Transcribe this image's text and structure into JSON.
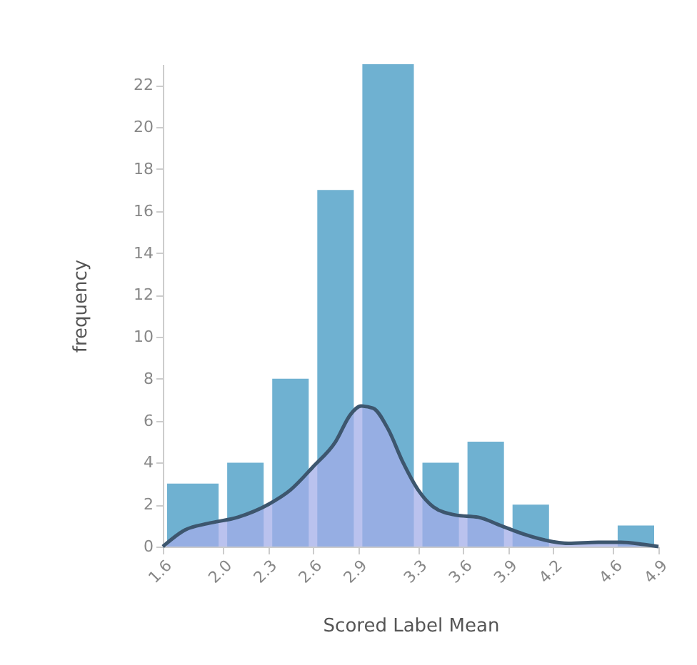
{
  "chart_data": {
    "type": "histogram",
    "xlabel": "Scored Label Mean",
    "ylabel": "frequency",
    "bins": [
      1.6,
      2.0,
      2.3,
      2.6,
      2.9,
      3.3,
      3.6,
      3.9,
      4.2,
      4.6,
      4.9
    ],
    "series": [
      {
        "color": "#6fb1d1",
        "values": [
          3,
          4,
          8,
          17,
          23,
          4,
          5,
          2,
          0,
          1
        ]
      },
      {
        "type": "area",
        "color": "#3d566e",
        "x": [
          1.6,
          1.75,
          1.9,
          2.1,
          2.3,
          2.45,
          2.6,
          2.75,
          2.85,
          2.92,
          3.0,
          3.1,
          3.2,
          3.3,
          3.4,
          3.55,
          3.7,
          3.85,
          4.0,
          4.15,
          4.3,
          4.5,
          4.65,
          4.8,
          4.9
        ],
        "values": [
          0,
          0.8,
          1.1,
          1.4,
          2.0,
          2.7,
          3.8,
          5.0,
          6.3,
          6.7,
          6.6,
          5.6,
          4.0,
          2.7,
          1.9,
          1.5,
          1.4,
          1.0,
          0.6,
          0.3,
          0.15,
          0.2,
          0.2,
          0.1,
          0
        ]
      }
    ],
    "xlim": [
      1.6,
      4.9
    ],
    "xticks": [
      1.6,
      {
        "value": 2.0,
        "label": "2.0"
      },
      2.3,
      2.6,
      2.9,
      3.3,
      3.6,
      3.9,
      4.2,
      4.6,
      4.9
    ],
    "ylim": [
      0,
      23
    ],
    "yticks": [
      0,
      2,
      4,
      6,
      8,
      10,
      12,
      14,
      16,
      18,
      20,
      22
    ],
    "grid": false
  }
}
